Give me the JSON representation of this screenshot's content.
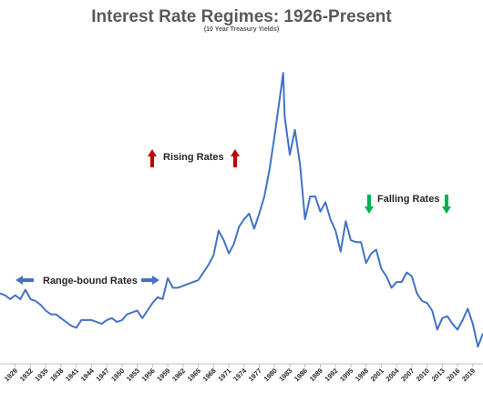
{
  "chart_data": {
    "type": "line",
    "title": "Interest Rate Regimes: 1926-Present",
    "subtitle": "(10 Year Treasury Yields)",
    "xlabel": "",
    "ylabel": "",
    "xlim": [
      1926,
      2021
    ],
    "ylim": [
      0,
      16.5
    ],
    "grid": false,
    "y_axis_visible": false,
    "x_tick_labels": [
      "1929",
      "1932",
      "1935",
      "1938",
      "1941",
      "1944",
      "1947",
      "1950",
      "1953",
      "1956",
      "1959",
      "1962",
      "1965",
      "1968",
      "1971",
      "1974",
      "1977",
      "1980",
      "1983",
      "1986",
      "1989",
      "1992",
      "1995",
      "1998",
      "2001",
      "2004",
      "2007",
      "2010",
      "2013",
      "2016",
      "2019"
    ],
    "series": [
      {
        "color": "#4472C4",
        "x": [
          1926,
          1927,
          1928,
          1929,
          1930,
          1931,
          1932,
          1933,
          1934,
          1935,
          1936,
          1937,
          1938,
          1939,
          1940,
          1941,
          1942,
          1943,
          1944,
          1945,
          1946,
          1947,
          1948,
          1949,
          1950,
          1951,
          1952,
          1953,
          1954,
          1955,
          1956,
          1957,
          1958,
          1959,
          1960,
          1961,
          1962,
          1963,
          1964,
          1965,
          1966,
          1967,
          1968,
          1969,
          1970,
          1971,
          1972,
          1973,
          1974,
          1975,
          1976,
          1977,
          1978,
          1979,
          1980,
          1981,
          1981.7,
          1982,
          1983,
          1984,
          1985,
          1986,
          1987,
          1988,
          1989,
          1990,
          1991,
          1992,
          1993,
          1994,
          1995,
          1996,
          1997,
          1998,
          1999,
          2000,
          2001,
          2002,
          2003,
          2004,
          2005,
          2006,
          2007,
          2008,
          2009,
          2010,
          2011,
          2012,
          2013,
          2014,
          2015,
          2016,
          2017,
          2018,
          2019,
          2020,
          2021
        ],
        "values": [
          3.7,
          3.6,
          3.4,
          3.6,
          3.4,
          3.9,
          3.4,
          3.3,
          3.1,
          2.8,
          2.6,
          2.6,
          2.4,
          2.2,
          2.0,
          1.9,
          2.3,
          2.3,
          2.3,
          2.2,
          2.1,
          2.3,
          2.4,
          2.2,
          2.3,
          2.6,
          2.7,
          2.8,
          2.4,
          2.8,
          3.2,
          3.5,
          3.4,
          4.5,
          4.0,
          4.0,
          4.1,
          4.2,
          4.3,
          4.4,
          4.8,
          5.2,
          5.7,
          7.0,
          6.5,
          5.8,
          6.3,
          7.2,
          7.6,
          7.9,
          7.1,
          7.9,
          8.8,
          10.2,
          12.0,
          13.9,
          15.3,
          13.0,
          11.0,
          12.3,
          10.5,
          7.6,
          8.8,
          8.8,
          8.0,
          8.5,
          7.6,
          7.0,
          5.9,
          7.5,
          6.5,
          6.4,
          6.4,
          5.3,
          5.8,
          6.0,
          5.0,
          4.6,
          4.0,
          4.3,
          4.3,
          4.8,
          4.6,
          3.7,
          3.3,
          3.2,
          2.8,
          1.8,
          2.4,
          2.5,
          2.1,
          1.8,
          2.3,
          2.9,
          2.1,
          0.9,
          1.6
        ]
      }
    ],
    "annotations": [
      {
        "text": "Range-bound Rates",
        "arrow_left_color": "#4472C4",
        "arrow_right_color": "#4472C4",
        "arrow_direction": "horizontal"
      },
      {
        "text": "Rising Rates",
        "arrow_color": "#C00000",
        "arrow_direction": "up"
      },
      {
        "text": "Falling Rates",
        "arrow_color": "#00B050",
        "arrow_direction": "down"
      }
    ]
  },
  "colors": {
    "line": "#4472C4",
    "title": "#595959",
    "axis": "#BFBFBF",
    "rising": "#C00000",
    "falling": "#00B050",
    "range": "#4472C4"
  }
}
